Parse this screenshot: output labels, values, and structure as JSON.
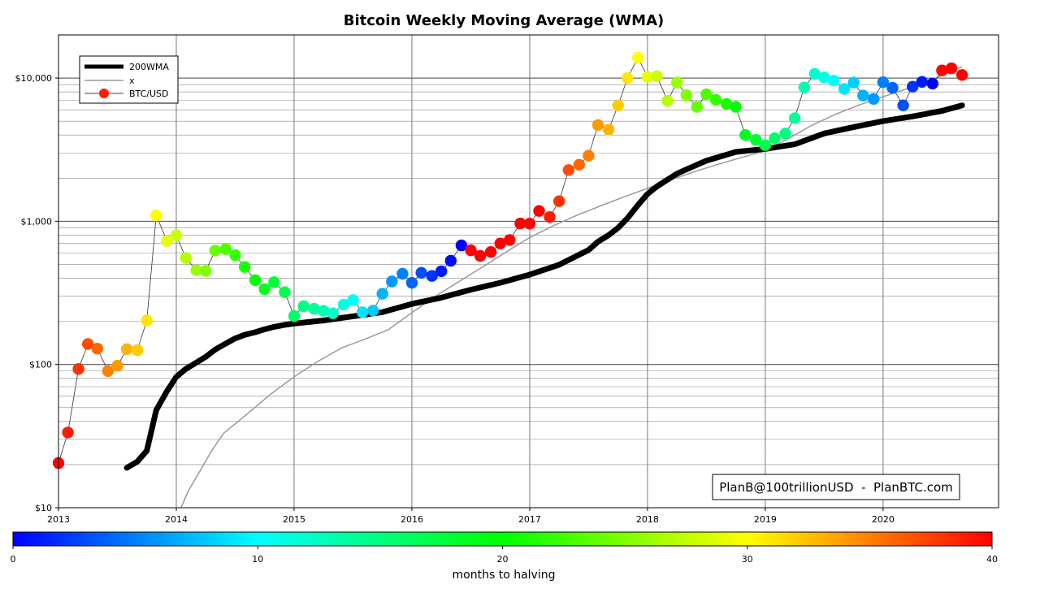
{
  "chart_data": {
    "type": "scatter",
    "title": "Bitcoin Weekly Moving Average (WMA)",
    "xlabel": "",
    "ylabel": "",
    "y_scale": "log",
    "xlim": [
      2013.0,
      2020.98
    ],
    "ylim": [
      10,
      20000
    ],
    "grid": true,
    "x_ticks": [
      2013,
      2014,
      2015,
      2016,
      2017,
      2018,
      2019,
      2020
    ],
    "x_tick_labels": [
      "2013",
      "2014",
      "2015",
      "2016",
      "2017",
      "2018",
      "2019",
      "2020"
    ],
    "y_ticks": [
      10,
      100,
      1000,
      10000
    ],
    "y_tick_labels": [
      "$10",
      "$100",
      "$1,000",
      "$10,000"
    ],
    "legend": {
      "position": "top-left",
      "entries": [
        "200WMA",
        "x",
        "BTC/USD"
      ]
    },
    "annotation": "PlanB@100trillionUSD  -  PlanBTC.com",
    "colorbar": {
      "label": "months to halving",
      "min": 0,
      "max": 40,
      "ticks": [
        0,
        10,
        20,
        30,
        40
      ],
      "tick_labels": [
        "0",
        "10",
        "20",
        "30",
        "40"
      ]
    },
    "series": [
      {
        "name": "200WMA",
        "color": "#000000",
        "x": [
          2013.58,
          2013.67,
          2013.75,
          2013.83,
          2013.92,
          2014.0,
          2014.08,
          2014.17,
          2014.25,
          2014.33,
          2014.42,
          2014.5,
          2014.58,
          2014.67,
          2014.75,
          2014.83,
          2014.92,
          2015.0,
          2015.25,
          2015.5,
          2015.75,
          2016.0,
          2016.25,
          2016.5,
          2016.75,
          2017.0,
          2017.25,
          2017.5,
          2017.58,
          2017.67,
          2017.75,
          2017.83,
          2017.92,
          2018.0,
          2018.08,
          2018.17,
          2018.25,
          2018.33,
          2018.5,
          2018.75,
          2019.0,
          2019.25,
          2019.5,
          2019.75,
          2020.0,
          2020.25,
          2020.5,
          2020.67
        ],
        "values": [
          19,
          21,
          25,
          48,
          65,
          82,
          93,
          103,
          113,
          127,
          140,
          152,
          161,
          168,
          176,
          183,
          189,
          193,
          203,
          217,
          232,
          265,
          293,
          333,
          372,
          424,
          497,
          630,
          720,
          800,
          900,
          1050,
          1300,
          1550,
          1750,
          1950,
          2150,
          2300,
          2650,
          3050,
          3200,
          3450,
          4100,
          4550,
          5000,
          5400,
          5900,
          6450
        ]
      },
      {
        "name": "x",
        "color": "#999999",
        "x": [
          2014.04,
          2014.1,
          2014.2,
          2014.3,
          2014.4,
          2014.6,
          2014.8,
          2015.0,
          2015.2,
          2015.4,
          2015.6,
          2015.8,
          2016.0,
          2016.2,
          2016.4,
          2016.6,
          2016.8,
          2017.0,
          2017.2,
          2017.4,
          2017.6,
          2017.8,
          2018.0,
          2018.2,
          2018.4,
          2018.6,
          2018.8,
          2019.0,
          2019.2,
          2019.4,
          2019.6,
          2019.8,
          2020.0,
          2020.2,
          2020.4,
          2020.67
        ],
        "values": [
          10,
          13,
          18,
          25,
          33,
          45,
          62,
          82,
          105,
          130,
          150,
          175,
          230,
          300,
          380,
          480,
          610,
          770,
          930,
          1100,
          1280,
          1480,
          1700,
          1950,
          2220,
          2500,
          2790,
          3100,
          3800,
          4700,
          5600,
          6500,
          7400,
          8400,
          9600,
          12000
        ]
      },
      {
        "name": "BTC/USD",
        "x": [
          2013.0,
          2013.08,
          2013.17,
          2013.25,
          2013.33,
          2013.42,
          2013.5,
          2013.58,
          2013.67,
          2013.75,
          2013.83,
          2013.92,
          2014.0,
          2014.08,
          2014.17,
          2014.25,
          2014.33,
          2014.42,
          2014.5,
          2014.58,
          2014.67,
          2014.75,
          2014.83,
          2014.92,
          2015.0,
          2015.08,
          2015.17,
          2015.25,
          2015.33,
          2015.42,
          2015.5,
          2015.58,
          2015.67,
          2015.75,
          2015.83,
          2015.92,
          2016.0,
          2016.08,
          2016.17,
          2016.25,
          2016.33,
          2016.42,
          2016.5,
          2016.58,
          2016.67,
          2016.75,
          2016.83,
          2016.92,
          2017.0,
          2017.08,
          2017.17,
          2017.25,
          2017.33,
          2017.42,
          2017.5,
          2017.58,
          2017.67,
          2017.75,
          2017.83,
          2017.92,
          2018.0,
          2018.08,
          2018.17,
          2018.25,
          2018.33,
          2018.42,
          2018.5,
          2018.58,
          2018.67,
          2018.75,
          2018.83,
          2018.92,
          2019.0,
          2019.08,
          2019.17,
          2019.25,
          2019.33,
          2019.42,
          2019.5,
          2019.58,
          2019.67,
          2019.75,
          2019.83,
          2019.92,
          2020.0,
          2020.08,
          2020.17,
          2020.25,
          2020.33,
          2020.42,
          2020.5,
          2020.58,
          2020.67
        ],
        "values": [
          20.5,
          33.5,
          93,
          139,
          129,
          90,
          98,
          128,
          126,
          203,
          1100,
          730,
          800,
          555,
          455,
          450,
          625,
          640,
          580,
          480,
          388,
          336,
          376,
          320,
          218,
          255,
          245,
          237,
          228,
          262,
          282,
          232,
          238,
          312,
          380,
          430,
          372,
          437,
          415,
          448,
          530,
          678,
          627,
          573,
          610,
          700,
          740,
          965,
          963,
          1180,
          1070,
          1380,
          2280,
          2480,
          2870,
          4700,
          4360,
          6450,
          10000,
          13900,
          10200,
          10300,
          6930,
          9300,
          7600,
          6300,
          7700,
          7050,
          6600,
          6300,
          4000,
          3700,
          3400,
          3800,
          4100,
          5250,
          8600,
          10700,
          10100,
          9600,
          8400,
          9300,
          7550,
          7150,
          9350,
          8550,
          6450,
          8700,
          9400,
          9150,
          11300,
          11700,
          10500
        ],
        "months_to_halving": [
          40,
          39,
          38,
          37,
          36,
          35,
          34,
          33,
          32,
          31,
          30,
          29,
          28,
          27,
          26,
          25,
          24,
          23,
          22,
          21,
          20,
          19,
          18,
          17,
          16,
          15,
          14,
          13,
          12,
          11,
          10,
          9,
          8,
          7,
          6,
          5,
          4,
          3,
          2,
          1,
          0.5,
          0,
          47,
          46,
          45,
          44,
          43,
          42,
          41,
          40,
          39,
          38,
          37,
          36,
          35,
          34,
          33,
          32,
          31,
          30,
          29,
          28,
          27,
          26,
          25,
          24,
          23,
          22,
          21,
          20,
          19,
          18,
          17,
          16,
          15,
          14,
          13,
          12,
          11,
          10,
          9,
          8,
          7,
          6,
          5,
          4,
          3,
          2,
          1,
          0,
          47,
          46,
          45
        ]
      }
    ]
  }
}
